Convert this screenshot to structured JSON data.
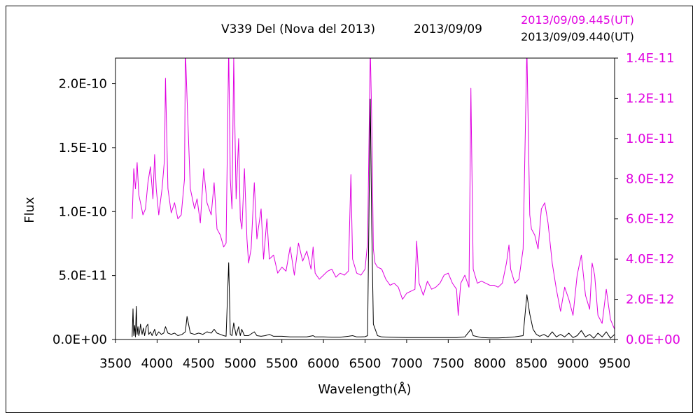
{
  "chart_data": {
    "type": "line",
    "title": "V339 Del (Nova del 2013)",
    "date": "2013/09/09",
    "xlabel": "Wavelength(Å)",
    "ylabel": "Flux",
    "xlim": [
      3500,
      9500
    ],
    "x_ticks": [
      "3500",
      "4000",
      "4500",
      "5000",
      "5500",
      "6000",
      "6500",
      "7000",
      "7500",
      "8000",
      "8500",
      "9000",
      "9500"
    ],
    "y_left_lim": [
      0,
      2.2e-10
    ],
    "y_left_ticks": [
      "0.0E+00",
      "5.0E-11",
      "1.0E-10",
      "1.5E-10",
      "2.0E-10"
    ],
    "y_right_lim": [
      0,
      1.4e-11
    ],
    "y_right_ticks": [
      "0.0E+00",
      "2.0E-12",
      "4.0E-12",
      "6.0E-12",
      "8.0E-12",
      "1.0E-11",
      "1.2E-11",
      "1.4E-11"
    ],
    "colors": {
      "magenta": "#e000e0",
      "black": "#000000"
    },
    "series": [
      {
        "name": "2013/09/09.445(UT)",
        "axis": "right",
        "color": "#e000e0",
        "x": [
          3700,
          3720,
          3740,
          3760,
          3780,
          3800,
          3830,
          3860,
          3890,
          3920,
          3950,
          3970,
          3990,
          4020,
          4060,
          4090,
          4101,
          4130,
          4170,
          4210,
          4250,
          4290,
          4330,
          4340,
          4360,
          4400,
          4450,
          4480,
          4520,
          4560,
          4600,
          4650,
          4686,
          4720,
          4760,
          4800,
          4830,
          4861,
          4880,
          4900,
          4921,
          4950,
          4980,
          5000,
          5020,
          5050,
          5080,
          5100,
          5130,
          5169,
          5200,
          5250,
          5280,
          5320,
          5350,
          5400,
          5450,
          5500,
          5550,
          5600,
          5650,
          5700,
          5750,
          5800,
          5850,
          5876,
          5900,
          5950,
          6000,
          6050,
          6100,
          6150,
          6200,
          6250,
          6300,
          6330,
          6350,
          6400,
          6450,
          6500,
          6530,
          6563,
          6580,
          6600,
          6620,
          6650,
          6700,
          6750,
          6800,
          6850,
          6900,
          6950,
          7000,
          7050,
          7100,
          7120,
          7150,
          7200,
          7250,
          7300,
          7350,
          7400,
          7450,
          7500,
          7550,
          7600,
          7620,
          7650,
          7700,
          7750,
          7772,
          7800,
          7850,
          7900,
          7950,
          8000,
          8050,
          8100,
          8150,
          8200,
          8230,
          8250,
          8300,
          8350,
          8400,
          8446,
          8480,
          8500,
          8540,
          8580,
          8620,
          8660,
          8700,
          8750,
          8800,
          8850,
          8900,
          8950,
          9000,
          9050,
          9100,
          9150,
          9200,
          9230,
          9260,
          9300,
          9350,
          9400,
          9450,
          9500
        ],
        "y": [
          6e-12,
          8.5e-12,
          7.5e-12,
          8.8e-12,
          7.2e-12,
          6.8e-12,
          6.2e-12,
          6.5e-12,
          7.8e-12,
          8.6e-12,
          7e-12,
          9.2e-12,
          7.5e-12,
          6.2e-12,
          7.5e-12,
          9e-12,
          1.3e-11,
          7.5e-12,
          6.3e-12,
          6.8e-12,
          6e-12,
          6.2e-12,
          8e-12,
          1.45e-11,
          1.2e-11,
          7.5e-12,
          6.5e-12,
          7e-12,
          5.8e-12,
          8.5e-12,
          6.8e-12,
          6.2e-12,
          7.8e-12,
          5.5e-12,
          5.2e-12,
          4.6e-12,
          4.8e-12,
          1.45e-11,
          8e-12,
          6.5e-12,
          1.4e-11,
          7e-12,
          1e-11,
          6e-12,
          5.5e-12,
          8.5e-12,
          5e-12,
          3.8e-12,
          4.5e-12,
          7.8e-12,
          5e-12,
          6.5e-12,
          4e-12,
          6e-12,
          4e-12,
          4.2e-12,
          3.3e-12,
          3.6e-12,
          3.4e-12,
          4.6e-12,
          3.2e-12,
          4.8e-12,
          3.9e-12,
          4.4e-12,
          3.5e-12,
          4.6e-12,
          3.3e-12,
          3e-12,
          3.2e-12,
          3.4e-12,
          3.5e-12,
          3.1e-12,
          3.3e-12,
          3.2e-12,
          3.4e-12,
          8.2e-12,
          4e-12,
          3.3e-12,
          3.2e-12,
          3.5e-12,
          4.8e-12,
          1.45e-11,
          1.1e-11,
          4.5e-12,
          3.8e-12,
          3.6e-12,
          3.5e-12,
          3e-12,
          2.7e-12,
          2.8e-12,
          2.6e-12,
          2e-12,
          2.3e-12,
          2.4e-12,
          2.5e-12,
          4.9e-12,
          2.8e-12,
          2.2e-12,
          2.9e-12,
          2.5e-12,
          2.6e-12,
          2.8e-12,
          3.2e-12,
          3.3e-12,
          2.8e-12,
          2.5e-12,
          1.2e-12,
          2.8e-12,
          3.2e-12,
          2.6e-12,
          1.25e-11,
          3.5e-12,
          2.8e-12,
          2.9e-12,
          2.8e-12,
          2.7e-12,
          2.7e-12,
          2.6e-12,
          2.8e-12,
          3.8e-12,
          4.7e-12,
          3.5e-12,
          2.8e-12,
          3e-12,
          4.5e-12,
          1.45e-11,
          6.2e-12,
          5.5e-12,
          5.2e-12,
          4.5e-12,
          6.5e-12,
          6.8e-12,
          5.8e-12,
          3.8e-12,
          2.5e-12,
          1.4e-12,
          2.6e-12,
          2e-12,
          1.2e-12,
          3.2e-12,
          4.2e-12,
          2.2e-12,
          1.5e-12,
          3.8e-12,
          3.2e-12,
          1.2e-12,
          8e-13,
          2.5e-12,
          1e-12,
          5e-13
        ]
      },
      {
        "name": "2013/09/09.440(UT)",
        "axis": "left",
        "color": "#000000",
        "x": [
          3700,
          3710,
          3720,
          3730,
          3740,
          3750,
          3760,
          3770,
          3780,
          3790,
          3800,
          3820,
          3835,
          3850,
          3870,
          3889,
          3900,
          3920,
          3940,
          3970,
          3990,
          4020,
          4050,
          4080,
          4101,
          4130,
          4170,
          4210,
          4250,
          4300,
          4340,
          4360,
          4400,
          4450,
          4500,
          4550,
          4600,
          4650,
          4686,
          4720,
          4760,
          4800,
          4830,
          4861,
          4880,
          4900,
          4921,
          4950,
          4980,
          5000,
          5018,
          5050,
          5100,
          5169,
          5200,
          5250,
          5300,
          5350,
          5400,
          5500,
          5600,
          5700,
          5800,
          5876,
          5900,
          6000,
          6100,
          6200,
          6300,
          6350,
          6400,
          6450,
          6500,
          6530,
          6563,
          6580,
          6600,
          6650,
          6700,
          6800,
          7000,
          7200,
          7400,
          7600,
          7700,
          7772,
          7800,
          7900,
          8000,
          8100,
          8200,
          8300,
          8400,
          8446,
          8480,
          8520,
          8560,
          8600,
          8650,
          8700,
          8750,
          8800,
          8850,
          8900,
          8950,
          9000,
          9050,
          9100,
          9150,
          9200,
          9250,
          9300,
          9350,
          9400,
          9450,
          9500
        ],
        "y": [
          2e-12,
          2.4e-11,
          3e-12,
          1.1e-11,
          2e-12,
          2.6e-11,
          4e-12,
          1e-11,
          3e-12,
          6e-12,
          1.2e-11,
          4e-12,
          9e-12,
          3e-12,
          1e-11,
          1.2e-11,
          4e-12,
          6e-12,
          3e-12,
          8e-12,
          3e-12,
          6e-12,
          4e-12,
          5e-12,
          1e-11,
          5e-12,
          4e-12,
          5e-12,
          3e-12,
          4e-12,
          6e-12,
          1.8e-11,
          5e-12,
          4e-12,
          5e-12,
          4e-12,
          6e-12,
          5e-12,
          8e-12,
          5e-12,
          4e-12,
          3e-12,
          2.5e-12,
          6e-11,
          4e-12,
          3e-12,
          1.3e-11,
          3e-12,
          1e-11,
          3e-12,
          8e-12,
          3e-12,
          3e-12,
          6e-12,
          3e-12,
          2.5e-12,
          3e-12,
          4e-12,
          2.5e-12,
          2.5e-12,
          2e-12,
          2e-12,
          2e-12,
          3e-12,
          2e-12,
          2e-12,
          1.8e-12,
          1.8e-12,
          2.5e-12,
          3e-12,
          2e-12,
          2e-12,
          2.2e-12,
          3e-12,
          1.88e-10,
          9e-11,
          1.2e-11,
          3e-12,
          2e-12,
          1.8e-12,
          1.5e-12,
          1.5e-12,
          1.5e-12,
          1.5e-12,
          2e-12,
          8e-12,
          3e-12,
          1.5e-12,
          1.2e-12,
          1.2e-12,
          1.5e-12,
          2e-12,
          3e-12,
          3.5e-11,
          2e-11,
          8e-12,
          4e-12,
          2.5e-12,
          4e-12,
          2e-12,
          6e-12,
          2e-12,
          4e-12,
          2e-12,
          5e-12,
          1.5e-12,
          3e-12,
          7e-12,
          2e-12,
          4e-12,
          1e-12,
          5e-12,
          2e-12,
          6e-12,
          1e-12,
          4e-12
        ]
      }
    ]
  }
}
